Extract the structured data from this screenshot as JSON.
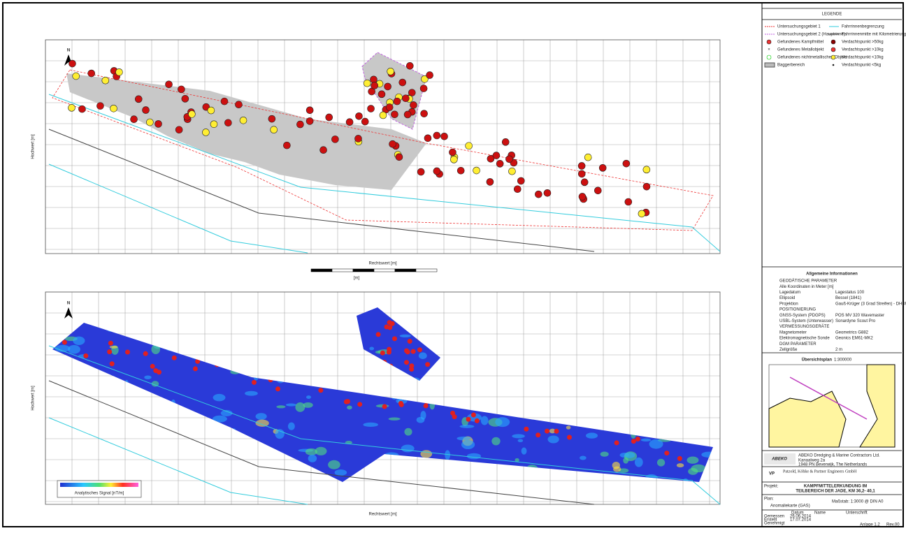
{
  "legend": {
    "title": "LEGENDE",
    "items": [
      "Untersuchungsgebiet 1",
      "Fahrrinnenbegrenzung",
      "Untersuchungsgebiet 2 (Hauptrinne)",
      "Fahrrinnenmitte mit Kilometrierung",
      "Gefundenes Kampfmittel",
      "Verdachtspunkt >50kg",
      "Gefundenes Metallobjekt",
      "Verdachtspunkt >10kg",
      "Gefundenes nichtmetallisches Objekt",
      "Verdachtspunkt <10kg",
      "Baggerbereich",
      "Verdachtspunkt <5kg"
    ]
  },
  "info": {
    "title": "Allgemeine Informationen",
    "rows": [
      [
        "GEODÄTISCHE PARAMETER",
        ""
      ],
      [
        "Alle Koordinaten in Meter [m]",
        ""
      ],
      [
        "Lagedatum",
        "Lagestatus 100"
      ],
      [
        "Ellipsoid",
        "Bessel (1841)"
      ],
      [
        "Projektion",
        "Gauß-Krüger (3 Grad Streifen) - DHDN"
      ],
      [
        "POSITIONIERUNG",
        ""
      ],
      [
        "GNSS-System (PDGPS)",
        "POS MV 320 Wavemaster"
      ],
      [
        "USBL-System (Unterwasser)",
        "Sonardyne Scout Pro"
      ],
      [
        "VERMESSUNGSGERÄTE",
        ""
      ],
      [
        "Magnetometer",
        "Geometrics G882"
      ],
      [
        "Elektromagnetische Sonde",
        "Geonics EM61-MK2"
      ],
      [
        "DGM PARAMETER",
        ""
      ],
      [
        "Zellgröße",
        "2 m"
      ]
    ]
  },
  "overview": {
    "title": "Übersichtsplan",
    "scale": "1:300000"
  },
  "abeko": {
    "logo": "ABEKO",
    "name": "ABEKO Dredging & Marine Contractors Ltd.",
    "address": [
      "Kanaalweg 2a",
      "1948 PN Beverwijk, The Netherlands"
    ]
  },
  "vp": {
    "logo": "VP",
    "name": "Patzold, Köhke & Partner Engineers GmbH"
  },
  "project": {
    "label": "Projekt:",
    "title": [
      "KAMPFMITTELERKUNDUNG IM",
      "TEILBEREICH DER JADE, KM 36,2- 40,1"
    ]
  },
  "plan": {
    "label": "Plan:",
    "name": "Anomaliekarte (GAS)",
    "scale": "Maßstab: 1:3000 @ DIN A0"
  },
  "signature": {
    "header": [
      "Datum",
      "Name",
      "Unterschrift"
    ],
    "rows": [
      [
        "Gemessen",
        "26.06.2014"
      ],
      [
        "Erstellt",
        "17.07.2014"
      ],
      [
        "Genehmigt",
        ""
      ]
    ],
    "sheet": "Anlage 1.2",
    "rev": "Rev.00"
  },
  "maps": {
    "north": "N",
    "axis_x": "Rechtswert [m]",
    "axis_y": "Hochwert [m]",
    "scale_unit": "[m]",
    "colorbar": "Analytisches Signal [nT/m]"
  }
}
